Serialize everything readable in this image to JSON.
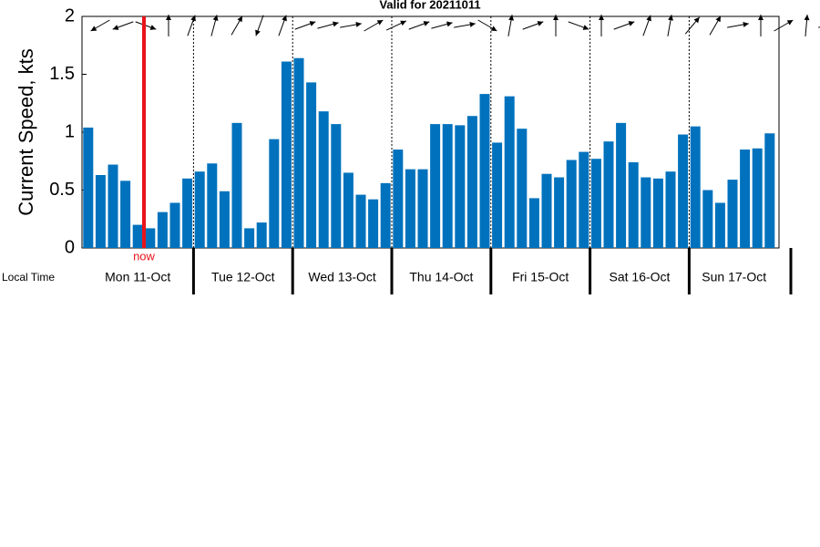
{
  "chart_data": {
    "type": "bar",
    "title": "Valid for 20211011",
    "y_label": "Current Speed, kts",
    "x_label": "Local Time",
    "color": "#0072bd",
    "values": [
      1.04,
      0.63,
      0.72,
      0.58,
      0.2,
      0.17,
      0.31,
      0.39,
      0.6,
      0.66,
      0.73,
      0.49,
      1.08,
      0.17,
      0.22,
      0.94,
      1.61,
      1.64,
      1.43,
      1.18,
      1.07,
      0.65,
      0.46,
      0.42,
      0.56,
      0.85,
      0.68,
      0.68,
      1.07,
      1.07,
      1.06,
      1.14,
      1.33,
      0.91,
      1.31,
      1.03,
      0.43,
      0.64,
      0.61,
      0.76,
      0.83,
      0.77,
      0.92,
      1.08,
      0.74,
      0.61,
      0.6,
      0.66,
      0.98,
      1.05,
      0.5,
      0.39,
      0.59,
      0.85,
      0.86,
      0.99
    ],
    "days": [
      "Mon 11-Oct",
      "Tue 12-Oct",
      "Wed 13-Oct",
      "Thu 14-Oct",
      "Fri 15-Oct",
      "Sat 16-Oct",
      "Sun 17-Oct"
    ],
    "directions": [
      240,
      250,
      110,
      0,
      20,
      15,
      30,
      200,
      20,
      70,
      75,
      80,
      60,
      65,
      70,
      75,
      80,
      120,
      10,
      70,
      0,
      110,
      0,
      70,
      20,
      10,
      40,
      30,
      80,
      0,
      60,
      5,
      80
    ],
    "now": {
      "label": "now",
      "x": 4.5
    },
    "ylim": [
      0,
      2
    ],
    "yticks": [
      0,
      0.5,
      1,
      1.5,
      2
    ]
  }
}
